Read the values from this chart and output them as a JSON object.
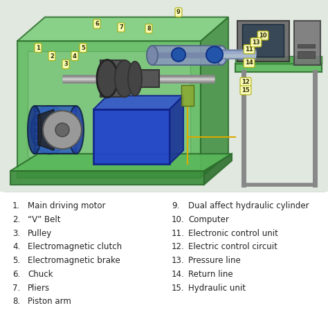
{
  "background_color": "#f5f5f5",
  "legend_background": "#ffffff",
  "legend_left": [
    [
      "1.",
      "Main driving motor"
    ],
    [
      "2.",
      "“V” Belt"
    ],
    [
      "3.",
      "Pulley"
    ],
    [
      "4.",
      "Electromagnetic clutch"
    ],
    [
      "5.",
      "Electromagnetic brake"
    ],
    [
      "6.",
      "Chuck"
    ],
    [
      "7.",
      "Pliers"
    ],
    [
      "8.",
      "Piston arm"
    ]
  ],
  "legend_right": [
    [
      "9.",
      "Dual affect hydraulic cylinder"
    ],
    [
      "10.",
      "Computer"
    ],
    [
      "11.",
      "Electronic control unit"
    ],
    [
      "12.",
      "Electric control circuit"
    ],
    [
      "13.",
      "Pressure line"
    ],
    [
      "14.",
      "Return line"
    ],
    [
      "15.",
      "Hydraulic unit"
    ]
  ],
  "fig_width": 4.74,
  "fig_height": 4.61,
  "dpi": 100,
  "label_box_color": "#ffffbb",
  "label_box_edgecolor": "#aaaa00",
  "legend_fontsize": 8.5,
  "image_bg": "#dce8dc",
  "green_main": "#5cb85c",
  "green_dark": "#2d7a2d",
  "green_light": "#a8d8a8",
  "blue_dark": "#1a3a99",
  "blue_mid": "#3355bb",
  "gray_dark": "#555555",
  "gray_mid": "#888888",
  "gray_light": "#bbbbbb"
}
